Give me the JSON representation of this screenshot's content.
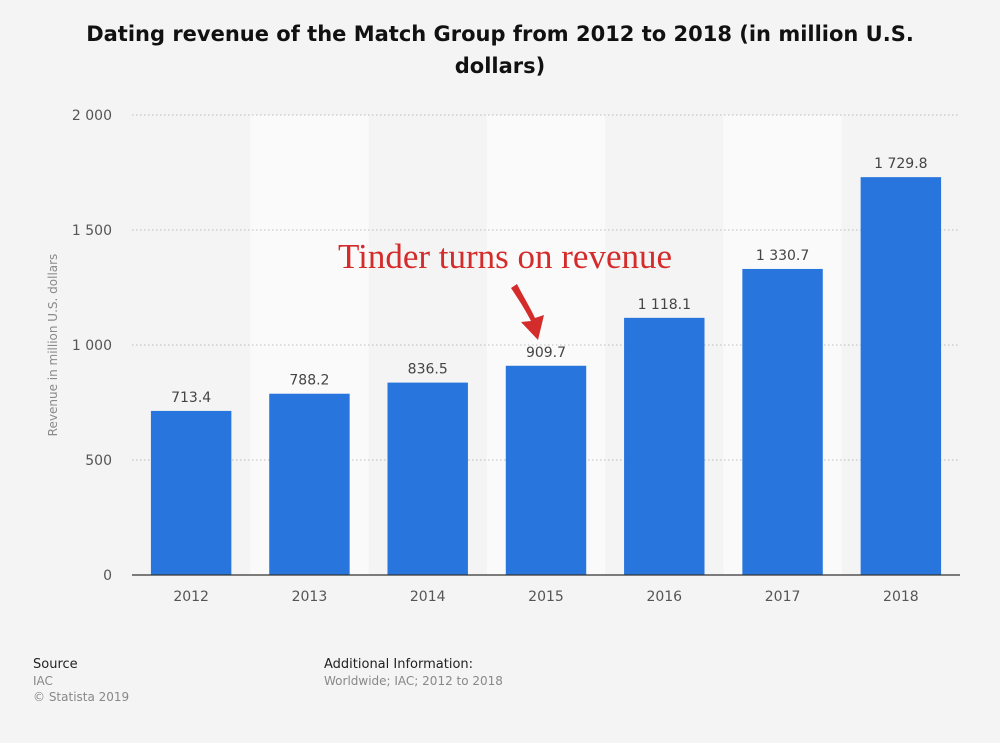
{
  "chart_data": {
    "type": "bar",
    "title": "Dating revenue of the Match Group from 2012 to 2018 (in million U.S. dollars)",
    "xlabel": "",
    "ylabel": "Revenue in million U.S. dollars",
    "categories": [
      "2012",
      "2013",
      "2014",
      "2015",
      "2016",
      "2017",
      "2018"
    ],
    "values": [
      713.4,
      788.2,
      836.5,
      909.7,
      1118.1,
      1330.7,
      1729.8
    ],
    "value_labels": [
      "713.4",
      "788.2",
      "836.5",
      "909.7",
      "1 118.1",
      "1 330.7",
      "1 729.8"
    ],
    "ylim": [
      0,
      2000
    ],
    "yticks": [
      0,
      500,
      1000,
      1500,
      2000
    ],
    "ytick_labels": [
      "0",
      "500",
      "1 000",
      "1 500",
      "2 000"
    ],
    "grid": true,
    "legend": "none",
    "bar_color": "#2876dd",
    "annotation": {
      "text": "Tinder turns on revenue",
      "color": "#d42b2b",
      "points_to": "2015"
    }
  },
  "footer": {
    "source_heading": "Source",
    "source_name": "IAC",
    "copyright": "© Statista 2019",
    "additional_heading": "Additional Information:",
    "additional_text": "Worldwide; IAC; 2012 to 2018"
  }
}
